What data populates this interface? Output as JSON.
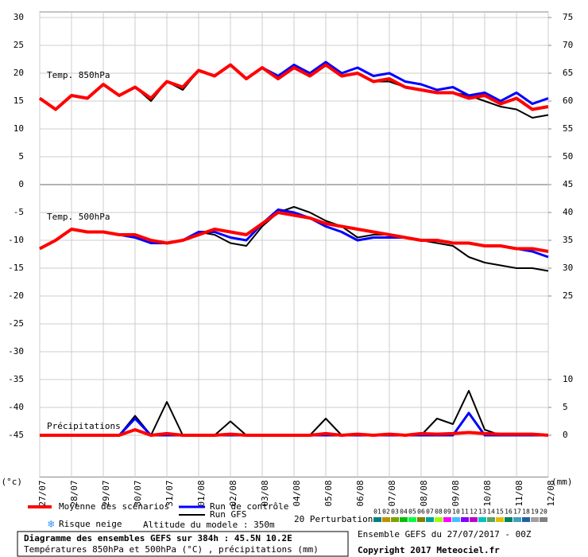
{
  "chart_data": {
    "type": "line",
    "categories": [
      "27/07",
      null,
      "28/07",
      null,
      "29/07",
      null,
      "30/07",
      null,
      "31/07",
      null,
      "01/08",
      null,
      "02/08",
      null,
      "03/08",
      null,
      "04/08",
      null,
      "05/08",
      null,
      "06/08",
      null,
      "07/08",
      null,
      "08/08",
      null,
      "09/08",
      null,
      "10/08",
      null,
      "11/08",
      null,
      "12/08"
    ],
    "ylim": [
      -52.5,
      31
    ],
    "yticks": [
      30,
      25,
      20,
      15,
      10,
      5,
      0,
      -5,
      -10,
      -15,
      -20,
      -25,
      -30,
      -35,
      -40,
      -45
    ],
    "y2lim": [
      -7.5,
      76
    ],
    "y2ticks": [
      75,
      70,
      65,
      60,
      55,
      50,
      45,
      40,
      35,
      30,
      25,
      10,
      5,
      0
    ],
    "ylabel": "(°c)",
    "y2label": "(mm)",
    "grid": true,
    "annotations": [
      "Temp. 850hPa",
      "Temp. 500hPa",
      "Précipitations"
    ],
    "series": [
      {
        "name": "Moyenne des scénarios",
        "color": "#ff0000",
        "t850": [
          15.5,
          13.5,
          16,
          15.5,
          18,
          16,
          17.5,
          15.5,
          18.5,
          17.5,
          20.5,
          19.5,
          21.5,
          19,
          21,
          19,
          21,
          19.5,
          21.5,
          19.5,
          20,
          18.5,
          19,
          17.5,
          17,
          16.5,
          16.5,
          15.5,
          16,
          14.5,
          15.5,
          13.5,
          14
        ],
        "t500": [
          -11.5,
          -10,
          -8,
          -8.5,
          -8.5,
          -9,
          -9,
          -10,
          -10.5,
          -10,
          -9,
          -8,
          -8.5,
          -9,
          -7,
          -5,
          -5.5,
          -6,
          -7,
          -7.5,
          -8,
          -8.5,
          -9,
          -9.5,
          -10,
          -10,
          -10.5,
          -10.5,
          -11,
          -11,
          -11.5,
          -11.5,
          -12
        ],
        "precip": [
          0,
          0,
          0,
          0,
          0,
          0,
          1,
          0,
          0.3,
          0,
          0,
          0,
          0.2,
          0,
          0,
          0,
          0,
          0,
          0.3,
          0,
          0.2,
          0,
          0.2,
          0,
          0.3,
          0.2,
          0.3,
          0.5,
          0.3,
          0.2,
          0.2,
          0.2,
          0
        ]
      },
      {
        "name": "Run de contrôle",
        "color": "#0000ff",
        "t850": [
          15.5,
          13.5,
          16,
          15.5,
          18,
          16,
          17.5,
          15.5,
          18.5,
          17.5,
          20.5,
          19.5,
          21.5,
          19,
          21,
          19.5,
          21.5,
          20,
          22,
          20,
          21,
          19.5,
          20,
          18.5,
          18,
          17,
          17.5,
          16,
          16.5,
          15,
          16.5,
          14.5,
          15.5
        ],
        "t500": [
          -11.5,
          -10,
          -8,
          -8.5,
          -8.5,
          -9,
          -9.5,
          -10.5,
          -10.5,
          -10,
          -8.5,
          -8.5,
          -9.5,
          -10,
          -7,
          -4.5,
          -5,
          -6,
          -7.5,
          -8.5,
          -10,
          -9.5,
          -9.5,
          -9.5,
          -10,
          -10,
          -10.5,
          -10.5,
          -11,
          -11,
          -11.5,
          -12,
          -13
        ],
        "precip": [
          0,
          0,
          0,
          0,
          0,
          0,
          3,
          0,
          0,
          0,
          0,
          0,
          0,
          0,
          0,
          0,
          0,
          0,
          0,
          0,
          0,
          0,
          0,
          0,
          0,
          0,
          0,
          4,
          0,
          0,
          0,
          0,
          0
        ]
      },
      {
        "name": "Run GFS",
        "color": "#000000",
        "t850": [
          15.5,
          13.5,
          16,
          15.5,
          18,
          16,
          17.5,
          15,
          18.5,
          17,
          20.5,
          19.5,
          21.5,
          19,
          21,
          19,
          21,
          19.5,
          21.5,
          19.5,
          20,
          18.5,
          18.5,
          17.5,
          17,
          16.5,
          16.5,
          16,
          15,
          14,
          13.5,
          12,
          12.5
        ],
        "t500": [
          -11.5,
          -10,
          -8,
          -8.5,
          -8.5,
          -9,
          -9.5,
          -10.5,
          -10.5,
          -10,
          -8.5,
          -9,
          -10.5,
          -11,
          -7.5,
          -5,
          -4,
          -5,
          -6.5,
          -7.5,
          -9.5,
          -9,
          -9,
          -9.5,
          -10,
          -10.5,
          -11,
          -13,
          -14,
          -14.5,
          -15,
          -15,
          -15.5
        ],
        "precip": [
          0,
          0,
          0,
          0,
          0,
          0,
          3.5,
          0,
          6,
          0,
          0,
          0,
          2.5,
          0,
          0,
          0,
          0,
          0,
          3,
          0,
          0,
          0,
          0,
          0,
          0,
          3,
          2,
          8,
          1,
          0,
          0,
          0,
          0
        ]
      }
    ],
    "perturbations": {
      "label": "20 Perturbations",
      "members": [
        {
          "label": "01",
          "color": "#008080"
        },
        {
          "label": "02",
          "color": "#c09000"
        },
        {
          "label": "03",
          "color": "#80a000"
        },
        {
          "label": "04",
          "color": "#00c000"
        },
        {
          "label": "05",
          "color": "#00ff40"
        },
        {
          "label": "06",
          "color": "#808000"
        },
        {
          "label": "07",
          "color": "#00a0a0"
        },
        {
          "label": "08",
          "color": "#a0ff00"
        },
        {
          "label": "09",
          "color": "#ff00ff"
        },
        {
          "label": "10",
          "color": "#40c0ff"
        },
        {
          "label": "11",
          "color": "#8000ff"
        },
        {
          "label": "12",
          "color": "#c000c0"
        },
        {
          "label": "13",
          "color": "#00c0c0"
        },
        {
          "label": "14",
          "color": "#60a060"
        },
        {
          "label": "15",
          "color": "#e0c000"
        },
        {
          "label": "16",
          "color": "#008060"
        },
        {
          "label": "17",
          "color": "#40a0c0"
        },
        {
          "label": "18",
          "color": "#2060a0"
        },
        {
          "label": "19",
          "color": "#a0a0a0"
        },
        {
          "label": "20",
          "color": "#808080"
        }
      ]
    },
    "snow_label": "Risque neige",
    "altitude": "Altitude du modele : 350m"
  },
  "footer": {
    "title": "Diagramme des ensembles GEFS sur 384h : 45.5N 10.2E",
    "subtitle": "Températures 850hPa et 500hPa (°C) , précipitations (mm)",
    "run": "Ensemble GEFS du 27/07/2017 - 00Z",
    "copyright": "Copyright 2017 Meteociel.fr"
  }
}
